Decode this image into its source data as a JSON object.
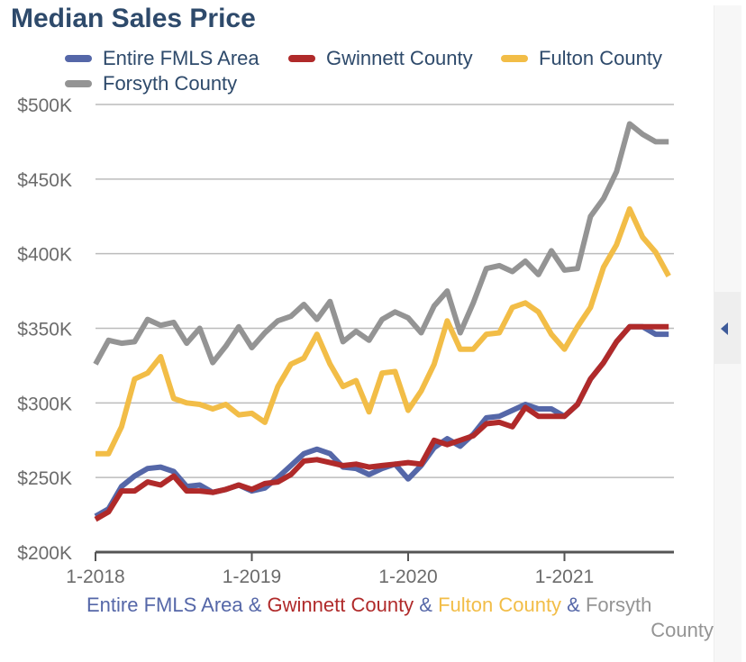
{
  "title": "Median Sales Price",
  "colors": {
    "fmls": "#5567a8",
    "gwinnett": "#b02a2a",
    "fulton": "#f2bd47",
    "forsyth": "#949494",
    "title": "#2e4a6b",
    "grid": "#bcbcbc",
    "tick_text": "#6b6b6b"
  },
  "legend": [
    {
      "label": "Entire FMLS Area",
      "color": "#5567a8"
    },
    {
      "label": "Gwinnett County",
      "color": "#b02a2a"
    },
    {
      "label": "Fulton County",
      "color": "#f2bd47"
    },
    {
      "label": "Forsyth County",
      "color": "#949494"
    }
  ],
  "xaxis_label": {
    "part1": "Entire FMLS Area",
    "sep1": " & ",
    "part2": "Gwinnett County",
    "sep2": " & ",
    "part3": "Fulton County",
    "sep3": " & ",
    "part4a": "Forsyth",
    "part4b": "County"
  },
  "side_toggle_icon": "collapse-left-icon",
  "chart_data": {
    "type": "line",
    "title": "Median Sales Price",
    "ylim": [
      200000,
      500000
    ],
    "yticks": [
      200000,
      250000,
      300000,
      350000,
      400000,
      450000,
      500000
    ],
    "ytick_labels": [
      "$200K",
      "$250K",
      "$300K",
      "$350K",
      "$400K",
      "$450K",
      "$500K"
    ],
    "xticks": [
      "1-2018",
      "1-2019",
      "1-2020",
      "1-2021"
    ],
    "x_start": "2018-01",
    "x_end": "2021-09",
    "grid": true,
    "legend_position": "top",
    "series": [
      {
        "name": "Entire FMLS Area",
        "values": [
          224000,
          229000,
          244000,
          251000,
          256000,
          257000,
          254000,
          244000,
          245000,
          240000,
          242000,
          245000,
          241000,
          243000,
          250000,
          258000,
          266000,
          269000,
          266000,
          257000,
          256000,
          252000,
          256000,
          259000,
          249000,
          258000,
          270000,
          276000,
          271000,
          279000,
          290000,
          291000,
          295000,
          299000,
          296000,
          296000,
          291000,
          299000,
          316000,
          327000,
          341000,
          351000,
          351000,
          346000,
          346000
        ]
      },
      {
        "name": "Gwinnett County",
        "values": [
          222000,
          227000,
          241000,
          241000,
          247000,
          245000,
          251000,
          241000,
          241000,
          240000,
          242000,
          245000,
          242000,
          246000,
          247000,
          252000,
          261000,
          262000,
          260000,
          258000,
          259000,
          257000,
          258000,
          259000,
          260000,
          259000,
          275000,
          272000,
          275000,
          278000,
          286000,
          287000,
          284000,
          297000,
          291000,
          291000,
          291000,
          299000,
          316000,
          327000,
          341000,
          351000,
          351000,
          351000,
          351000
        ]
      },
      {
        "name": "Fulton County",
        "values": [
          266000,
          266000,
          284000,
          316000,
          320000,
          331000,
          303000,
          300000,
          299000,
          296000,
          299000,
          292000,
          293000,
          287000,
          311000,
          326000,
          330000,
          346000,
          326000,
          311000,
          315000,
          294000,
          320000,
          321000,
          295000,
          308000,
          326000,
          355000,
          336000,
          336000,
          346000,
          347000,
          364000,
          367000,
          361000,
          346000,
          336000,
          351000,
          364000,
          391000,
          406000,
          430000,
          411000,
          401000,
          385000
        ]
      },
      {
        "name": "Forsyth County",
        "values": [
          326000,
          342000,
          340000,
          341000,
          356000,
          352000,
          354000,
          340000,
          350000,
          327000,
          338000,
          351000,
          337000,
          347000,
          355000,
          358000,
          366000,
          356000,
          368000,
          341000,
          348000,
          342000,
          356000,
          361000,
          357000,
          347000,
          365000,
          375000,
          347000,
          367000,
          390000,
          392000,
          388000,
          395000,
          386000,
          402000,
          389000,
          390000,
          425000,
          437000,
          455000,
          487000,
          480000,
          475000,
          475000
        ]
      }
    ]
  }
}
